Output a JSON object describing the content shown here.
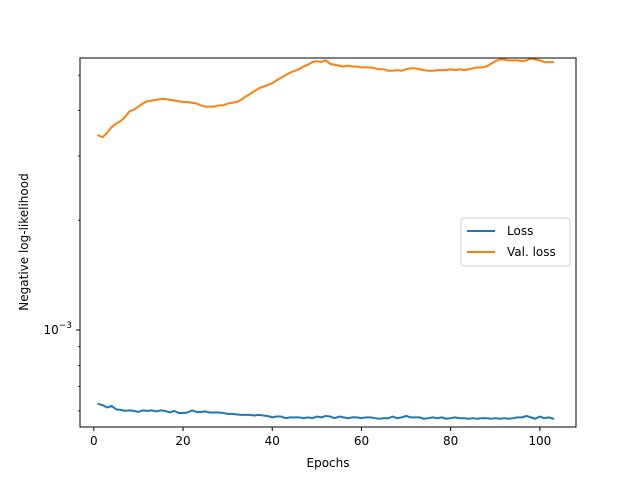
{
  "chart_data": {
    "type": "line",
    "title": "",
    "xlabel": "Epochs",
    "ylabel": "Negative log-likelihood",
    "xlim": [
      -3.1,
      108.1
    ],
    "ylim_log10": [
      -3.266,
      -2.254
    ],
    "yscale": "log",
    "grid": false,
    "legend_position": "center-right",
    "x_ticks": [
      0,
      20,
      40,
      60,
      80,
      100
    ],
    "x_tick_labels": [
      "0",
      "20",
      "40",
      "60",
      "80",
      "100"
    ],
    "y_tick": {
      "base": "10",
      "exponent": "−3",
      "value": 0.001
    },
    "series": [
      {
        "name": "Loss",
        "color": "#1f77b4",
        "points": [
          [
            1,
            0.000627
          ],
          [
            2,
            0.000622
          ],
          [
            3,
            0.000613
          ],
          [
            4,
            0.000619
          ],
          [
            5,
            0.000606
          ],
          [
            6,
            0.000604
          ],
          [
            7,
            0.0006
          ],
          [
            8,
            0.000602
          ],
          [
            9,
            0.0006
          ],
          [
            10,
            0.000596
          ],
          [
            11,
            0.000602
          ],
          [
            12,
            0.0006
          ],
          [
            13,
            0.000602
          ],
          [
            14,
            0.000598
          ],
          [
            15,
            0.000602
          ],
          [
            16,
            0.0006
          ],
          [
            17,
            0.000594
          ],
          [
            18,
            0.0006
          ],
          [
            19,
            0.000592
          ],
          [
            20,
            0.000592
          ],
          [
            21,
            0.000594
          ],
          [
            22,
            0.000602
          ],
          [
            23,
            0.000596
          ],
          [
            24,
            0.000596
          ],
          [
            25,
            0.000598
          ],
          [
            26,
            0.000594
          ],
          [
            27,
            0.000594
          ],
          [
            28,
            0.000594
          ],
          [
            29,
            0.000592
          ],
          [
            30,
            0.000589
          ],
          [
            31,
            0.000589
          ],
          [
            32,
            0.000587
          ],
          [
            33,
            0.000585
          ],
          [
            34,
            0.000585
          ],
          [
            35,
            0.000585
          ],
          [
            36,
            0.000583
          ],
          [
            37,
            0.000585
          ],
          [
            38,
            0.000583
          ],
          [
            39,
            0.000581
          ],
          [
            40,
            0.000576
          ],
          [
            41,
            0.000579
          ],
          [
            42,
            0.000579
          ],
          [
            43,
            0.000573
          ],
          [
            44,
            0.000576
          ],
          [
            45,
            0.000576
          ],
          [
            46,
            0.000576
          ],
          [
            47,
            0.000573
          ],
          [
            48,
            0.000576
          ],
          [
            49,
            0.000573
          ],
          [
            50,
            0.000579
          ],
          [
            51,
            0.000576
          ],
          [
            52,
            0.000581
          ],
          [
            53,
            0.000579
          ],
          [
            54,
            0.000573
          ],
          [
            55,
            0.000579
          ],
          [
            56,
            0.000576
          ],
          [
            57,
            0.000573
          ],
          [
            58,
            0.000576
          ],
          [
            59,
            0.000576
          ],
          [
            60,
            0.000573
          ],
          [
            61,
            0.000576
          ],
          [
            62,
            0.000576
          ],
          [
            63,
            0.000573
          ],
          [
            64,
            0.000571
          ],
          [
            65,
            0.000573
          ],
          [
            66,
            0.000573
          ],
          [
            67,
            0.000579
          ],
          [
            68,
            0.000573
          ],
          [
            69,
            0.000576
          ],
          [
            70,
            0.000581
          ],
          [
            71,
            0.000576
          ],
          [
            72,
            0.000576
          ],
          [
            73,
            0.000576
          ],
          [
            74,
            0.000571
          ],
          [
            75,
            0.000573
          ],
          [
            76,
            0.000576
          ],
          [
            77,
            0.000573
          ],
          [
            78,
            0.000576
          ],
          [
            79,
            0.000571
          ],
          [
            80,
            0.000573
          ],
          [
            81,
            0.000576
          ],
          [
            82,
            0.000573
          ],
          [
            83,
            0.000573
          ],
          [
            84,
            0.000571
          ],
          [
            85,
            0.000573
          ],
          [
            86,
            0.000571
          ],
          [
            87,
            0.000573
          ],
          [
            88,
            0.000573
          ],
          [
            89,
            0.000571
          ],
          [
            90,
            0.000573
          ],
          [
            91,
            0.000571
          ],
          [
            92,
            0.000573
          ],
          [
            93,
            0.000571
          ],
          [
            94,
            0.000573
          ],
          [
            95,
            0.000576
          ],
          [
            96,
            0.000576
          ],
          [
            97,
            0.000581
          ],
          [
            98,
            0.000576
          ],
          [
            99,
            0.000571
          ],
          [
            100,
            0.000579
          ],
          [
            101,
            0.000573
          ],
          [
            102,
            0.000576
          ],
          [
            103,
            0.000571
          ]
        ]
      },
      {
        "name": "Val. loss",
        "color": "#ff7f0e",
        "points": [
          [
            1,
            0.00342
          ],
          [
            2,
            0.00338
          ],
          [
            3,
            0.00348
          ],
          [
            4,
            0.0036
          ],
          [
            5,
            0.00368
          ],
          [
            6,
            0.00374
          ],
          [
            7,
            0.00384
          ],
          [
            8,
            0.00398
          ],
          [
            9,
            0.00402
          ],
          [
            10,
            0.0041
          ],
          [
            11,
            0.00418
          ],
          [
            12,
            0.00424
          ],
          [
            13,
            0.00426
          ],
          [
            14,
            0.00428
          ],
          [
            15,
            0.0043
          ],
          [
            16,
            0.0043
          ],
          [
            17,
            0.00428
          ],
          [
            18,
            0.00426
          ],
          [
            19,
            0.00424
          ],
          [
            20,
            0.00422
          ],
          [
            21,
            0.00422
          ],
          [
            22,
            0.0042
          ],
          [
            23,
            0.00418
          ],
          [
            24,
            0.00413
          ],
          [
            25,
            0.0041
          ],
          [
            26,
            0.0041
          ],
          [
            27,
            0.0041
          ],
          [
            28,
            0.00413
          ],
          [
            29,
            0.00413
          ],
          [
            30,
            0.00418
          ],
          [
            31,
            0.0042
          ],
          [
            32,
            0.00422
          ],
          [
            33,
            0.00428
          ],
          [
            34,
            0.00436
          ],
          [
            35,
            0.00444
          ],
          [
            36,
            0.00452
          ],
          [
            37,
            0.0046
          ],
          [
            38,
            0.00465
          ],
          [
            39,
            0.0047
          ],
          [
            40,
            0.00475
          ],
          [
            41,
            0.00484
          ],
          [
            42,
            0.00492
          ],
          [
            43,
            0.005
          ],
          [
            44,
            0.00508
          ],
          [
            45,
            0.00514
          ],
          [
            46,
            0.00519
          ],
          [
            47,
            0.00528
          ],
          [
            48,
            0.00534
          ],
          [
            49,
            0.00543
          ],
          [
            50,
            0.00546
          ],
          [
            51,
            0.00543
          ],
          [
            52,
            0.00549
          ],
          [
            53,
            0.00537
          ],
          [
            54,
            0.00534
          ],
          [
            55,
            0.00531
          ],
          [
            56,
            0.00528
          ],
          [
            57,
            0.00531
          ],
          [
            58,
            0.00528
          ],
          [
            59,
            0.00528
          ],
          [
            60,
            0.00525
          ],
          [
            61,
            0.00525
          ],
          [
            62,
            0.00525
          ],
          [
            63,
            0.00522
          ],
          [
            64,
            0.00519
          ],
          [
            65,
            0.00519
          ],
          [
            66,
            0.00514
          ],
          [
            67,
            0.00514
          ],
          [
            68,
            0.00516
          ],
          [
            69,
            0.00514
          ],
          [
            70,
            0.00519
          ],
          [
            71,
            0.00522
          ],
          [
            72,
            0.00522
          ],
          [
            73,
            0.00519
          ],
          [
            74,
            0.00516
          ],
          [
            75,
            0.00514
          ],
          [
            76,
            0.00514
          ],
          [
            77,
            0.00516
          ],
          [
            78,
            0.00516
          ],
          [
            79,
            0.00516
          ],
          [
            80,
            0.00519
          ],
          [
            81,
            0.00516
          ],
          [
            82,
            0.00519
          ],
          [
            83,
            0.00516
          ],
          [
            84,
            0.00519
          ],
          [
            85,
            0.00522
          ],
          [
            86,
            0.00525
          ],
          [
            87,
            0.00525
          ],
          [
            88,
            0.00528
          ],
          [
            89,
            0.00537
          ],
          [
            90,
            0.00546
          ],
          [
            91,
            0.00552
          ],
          [
            92,
            0.00552
          ],
          [
            93,
            0.00549
          ],
          [
            94,
            0.00549
          ],
          [
            95,
            0.00549
          ],
          [
            96,
            0.00546
          ],
          [
            97,
            0.00549
          ],
          [
            98,
            0.00555
          ],
          [
            99,
            0.00552
          ],
          [
            100,
            0.00549
          ],
          [
            101,
            0.00543
          ],
          [
            102,
            0.00543
          ],
          [
            103,
            0.00543
          ]
        ]
      }
    ]
  }
}
